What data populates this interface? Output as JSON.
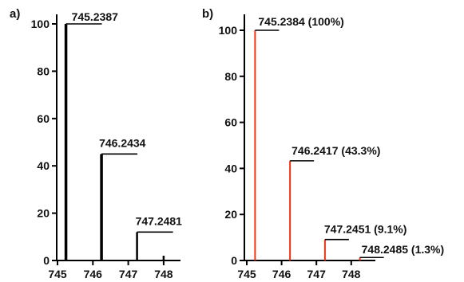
{
  "chart_data": [
    {
      "type": "bar",
      "panel_label": "a)",
      "xlabel": "",
      "ylabel": "",
      "xlim": [
        745,
        748.3
      ],
      "ylim": [
        0,
        100
      ],
      "x_ticks": [
        745,
        746,
        747,
        748
      ],
      "y_ticks": [
        0,
        20,
        40,
        60,
        80,
        100
      ],
      "grid": false,
      "legend": "none",
      "series": [
        {
          "color": "#000000",
          "points": [
            {
              "x": 745.2387,
              "y": 100,
              "label": "745.2387"
            },
            {
              "x": 746.2434,
              "y": 45,
              "label": "746.2434"
            },
            {
              "x": 747.2481,
              "y": 12,
              "label": "747.2481"
            },
            {
              "x": 748.0,
              "y": 2,
              "label": ""
            }
          ]
        }
      ]
    },
    {
      "type": "bar",
      "panel_label": "b)",
      "xlabel": "",
      "ylabel": "",
      "xlim": [
        745,
        748.6
      ],
      "ylim": [
        0,
        100
      ],
      "x_ticks": [
        745,
        746,
        747,
        748
      ],
      "y_ticks": [
        0,
        20,
        40,
        60,
        80,
        100
      ],
      "grid": false,
      "legend": "none",
      "series": [
        {
          "color": "#ee3311",
          "points": [
            {
              "x": 745.2384,
              "y": 100,
              "label": "745.2384 (100%)"
            },
            {
              "x": 746.2417,
              "y": 43.3,
              "label": "746.2417 (43.3%)"
            },
            {
              "x": 747.2451,
              "y": 9.1,
              "label": "747.2451 (9.1%)"
            },
            {
              "x": 748.2485,
              "y": 1.3,
              "label": "748.2485 (1.3%)"
            }
          ]
        }
      ]
    }
  ]
}
